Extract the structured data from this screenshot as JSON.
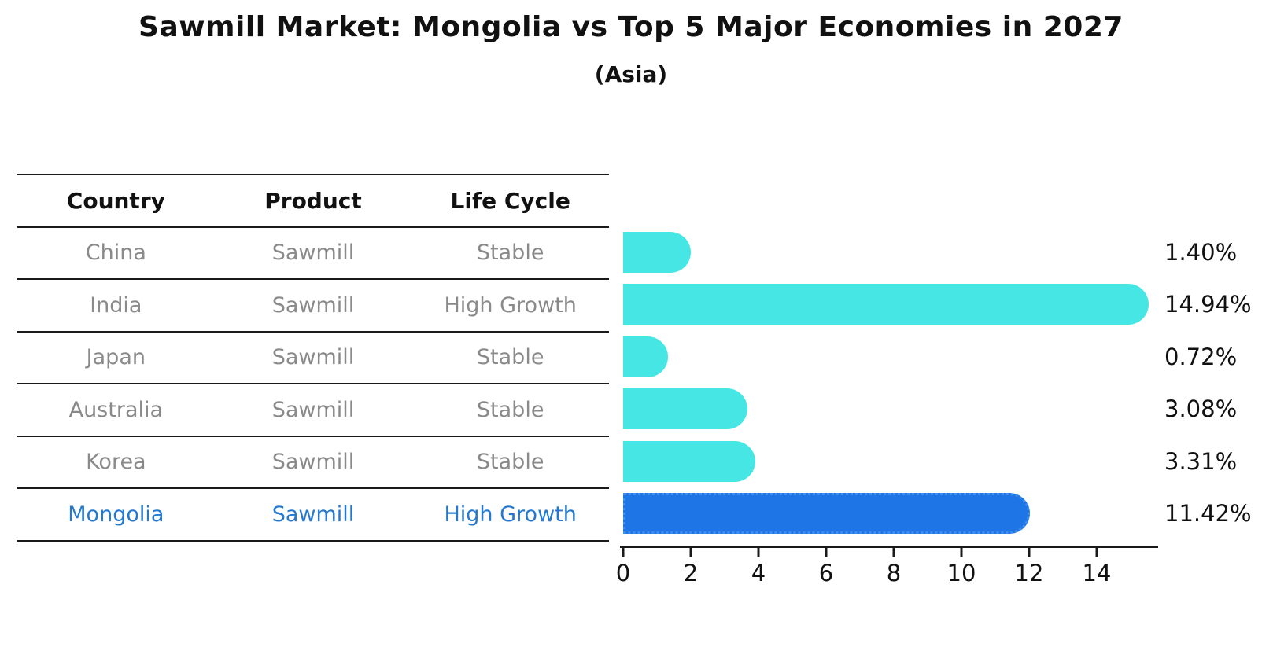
{
  "title": "Sawmill Market: Mongolia vs Top 5 Major Economies in 2027",
  "subtitle": "(Asia)",
  "table": {
    "headers": [
      "Country",
      "Product",
      "Life Cycle"
    ],
    "rows": [
      {
        "country": "China",
        "product": "Sawmill",
        "life_cycle": "Stable",
        "highlight": false
      },
      {
        "country": "India",
        "product": "Sawmill",
        "life_cycle": "High Growth",
        "highlight": false
      },
      {
        "country": "Japan",
        "product": "Sawmill",
        "life_cycle": "Stable",
        "highlight": false
      },
      {
        "country": "Australia",
        "product": "Sawmill",
        "life_cycle": "Stable",
        "highlight": false
      },
      {
        "country": "Korea",
        "product": "Sawmill",
        "life_cycle": "Stable",
        "highlight": false
      },
      {
        "country": "Mongolia",
        "product": "Sawmill",
        "life_cycle": "High Growth",
        "highlight": true
      }
    ]
  },
  "chart_data": {
    "type": "bar",
    "orientation": "horizontal",
    "title": "Sawmill Market: Mongolia vs Top 5 Major Economies in 2027",
    "subtitle": "(Asia)",
    "categories": [
      "China",
      "India",
      "Japan",
      "Australia",
      "Korea",
      "Mongolia"
    ],
    "values": [
      1.4,
      14.94,
      0.72,
      3.08,
      3.31,
      11.42
    ],
    "labels": [
      "1.40%",
      "14.94%",
      "0.72%",
      "3.08%",
      "3.31%",
      "11.42%"
    ],
    "xticks": [
      0,
      2,
      4,
      6,
      8,
      10,
      12,
      14
    ],
    "xlim": [
      0,
      15.5
    ],
    "grid": false,
    "legend": "none",
    "bar_colors": [
      "#45E6E3",
      "#45E6E3",
      "#45E6E3",
      "#45E6E3",
      "#45E6E3",
      "#1E76E6"
    ],
    "highlight_index": 5,
    "highlight_border_color": "#3F8FEF",
    "highlight_text_color": "#2478CE",
    "axis_color": "#1a1a1a",
    "text_color": "#111111",
    "muted_text_color": "#8a8a8a"
  }
}
